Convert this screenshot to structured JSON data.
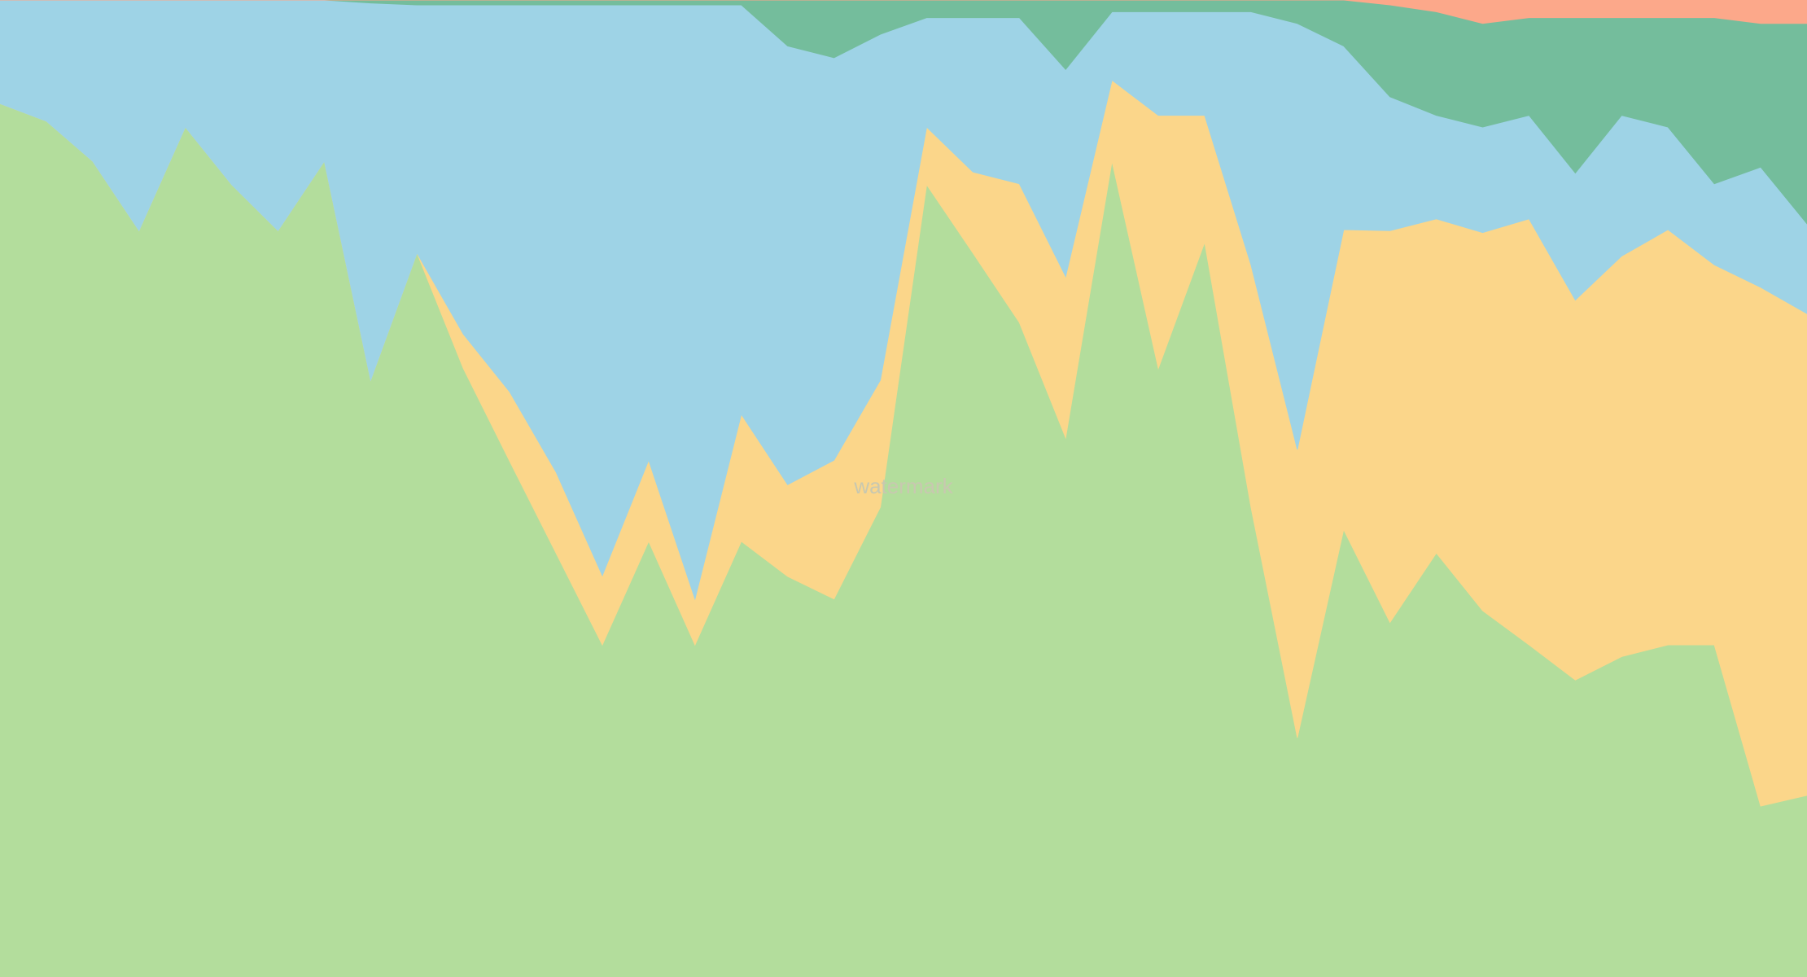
{
  "chart_data": {
    "type": "stacked_area",
    "annotation": "watermark",
    "categories": [
      null,
      null,
      null,
      null,
      null,
      null,
      null,
      null,
      null,
      null,
      null,
      null,
      null,
      null,
      null,
      null,
      null,
      null,
      null,
      null,
      null,
      null,
      null,
      null,
      null,
      null,
      null,
      null,
      null,
      null,
      null,
      null,
      null,
      null,
      null,
      null,
      null,
      null,
      null,
      null
    ],
    "ylim": [
      0,
      100
    ],
    "series": [
      {
        "color": "#b3dd9c",
        "values": [
          89.4,
          87.6,
          83.5,
          76.4,
          87.0,
          81.1,
          76.4,
          83.5,
          61.1,
          74.1,
          62.3,
          52.8,
          43.4,
          34.0,
          44.6,
          34.0,
          44.6,
          41.0,
          38.7,
          48.1,
          81.1,
          74.1,
          67.0,
          55.2,
          83.5,
          62.3,
          75.2,
          48.1,
          24.5,
          45.8,
          36.3,
          43.4,
          37.5,
          34.0,
          30.4,
          32.8,
          34.0,
          34.0,
          17.5,
          18.6
        ]
      },
      {
        "color": "#fbd68a",
        "values": [
          0,
          0,
          0,
          0,
          0,
          0,
          0,
          0,
          0,
          0,
          3.5,
          7.1,
          8.3,
          7.1,
          8.3,
          4.7,
          13.0,
          9.4,
          14.2,
          13.0,
          5.9,
          8.3,
          14.2,
          16.5,
          8.3,
          25.9,
          13.0,
          24.8,
          29.5,
          30.7,
          40.1,
          34.2,
          38.7,
          43.6,
          38.9,
          41.0,
          42.5,
          38.9,
          53.1,
          49.3
        ]
      },
      {
        "color": "#9ed3e6",
        "values": [
          10.6,
          12.4,
          16.5,
          23.6,
          13.0,
          18.9,
          23.6,
          16.5,
          38.6,
          25.4,
          33.7,
          39.6,
          47.8,
          58.4,
          46.6,
          60.8,
          41.9,
          44.9,
          41.2,
          35.4,
          11.2,
          15.8,
          17.0,
          21.2,
          7.0,
          10.6,
          10.6,
          25.9,
          43.6,
          18.8,
          13.7,
          10.6,
          10.8,
          10.6,
          13.0,
          14.4,
          10.5,
          8.3,
          12.3,
          9.2
        ]
      },
      {
        "color": "#74bd9c",
        "values": [
          0,
          0,
          0,
          0,
          0,
          0,
          0,
          0,
          0.3,
          0.5,
          0.5,
          0.5,
          0.5,
          0.5,
          0.5,
          0.5,
          0.5,
          4.7,
          5.9,
          3.5,
          1.8,
          1.8,
          1.8,
          7.1,
          1.2,
          1.2,
          1.2,
          1.2,
          2.4,
          4.7,
          9.4,
          10.6,
          10.6,
          10.0,
          15.9,
          10.0,
          11.2,
          17.0,
          14.7,
          20.5
        ]
      },
      {
        "color": "#fca88a",
        "values": [
          0,
          0,
          0,
          0,
          0,
          0,
          0,
          0,
          0,
          0,
          0,
          0,
          0,
          0,
          0,
          0,
          0,
          0,
          0,
          0,
          0,
          0,
          0,
          0,
          0,
          0,
          0,
          0,
          0,
          0,
          0.5,
          1.2,
          2.4,
          1.8,
          1.8,
          1.8,
          1.8,
          1.8,
          2.4,
          2.4
        ]
      }
    ]
  }
}
